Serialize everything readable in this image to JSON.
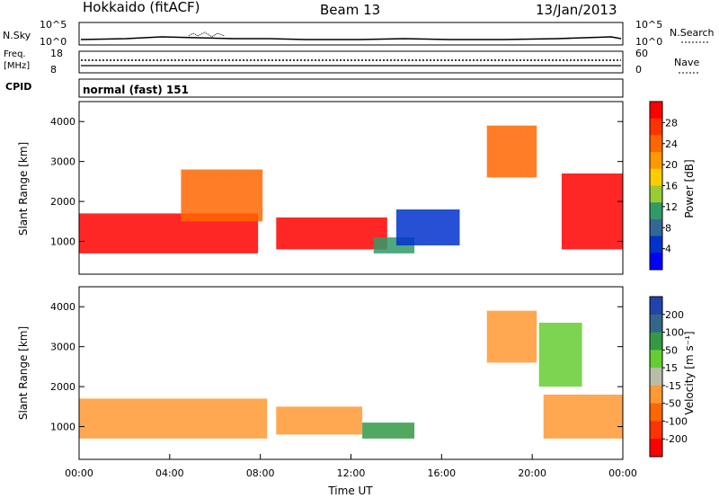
{
  "header": {
    "station": "Hokkaido (fitACF)",
    "beam": "Beam 13",
    "date": "13/Jan/2013"
  },
  "aux": {
    "nsky_label": "N.Sky",
    "nsky_ticks": [
      "10^5",
      "10^0"
    ],
    "nsearch_label": "N.Search",
    "nsearch_ticks": [
      "10^5",
      "10^0"
    ],
    "freq_label": "Freq.",
    "freq_unit": "[MHz]",
    "freq_ticks": [
      "18",
      "8"
    ],
    "nave_label": "Nave",
    "nave_ticks": [
      "60",
      "0"
    ],
    "cpid_label": "CPID",
    "cpid_value": "normal (fast) 151"
  },
  "chart_data": [
    {
      "type": "heatmap",
      "panel": "power",
      "ylabel": "Slant Range [km]",
      "yticks": [
        "4000",
        "3000",
        "2000",
        "1000"
      ],
      "ylim": [
        180,
        4500
      ],
      "xlim_hours": [
        0,
        24
      ],
      "colorbar": {
        "label": "Power [dB]",
        "ticks": [
          "28",
          "24",
          "20",
          "16",
          "12",
          "8",
          "4"
        ],
        "colors": [
          "#ff0000",
          "#ff3300",
          "#ff6600",
          "#ff9900",
          "#ffcc00",
          "#99cc33",
          "#339966",
          "#336699",
          "#0033cc",
          "#0000ff"
        ]
      },
      "echo_regions": [
        {
          "t0": 0.0,
          "t1": 7.9,
          "r0": 700,
          "r1": 1700,
          "value": "28"
        },
        {
          "t0": 4.5,
          "t1": 8.1,
          "r0": 1500,
          "r1": 2800,
          "value": "24"
        },
        {
          "t0": 8.7,
          "t1": 13.6,
          "r0": 800,
          "r1": 1600,
          "value": "28"
        },
        {
          "t0": 13.0,
          "t1": 14.8,
          "r0": 700,
          "r1": 1100,
          "value": "12"
        },
        {
          "t0": 14.0,
          "t1": 16.8,
          "r0": 900,
          "r1": 1800,
          "value": "8"
        },
        {
          "t0": 18.0,
          "t1": 20.2,
          "r0": 2600,
          "r1": 3900,
          "value": "24"
        },
        {
          "t0": 21.3,
          "t1": 24.0,
          "r0": 800,
          "r1": 2700,
          "value": "28"
        }
      ]
    },
    {
      "type": "heatmap",
      "panel": "velocity",
      "ylabel": "Slant Range [km]",
      "yticks": [
        "4000",
        "3000",
        "2000",
        "1000"
      ],
      "ylim": [
        180,
        4500
      ],
      "xlim_hours": [
        0,
        24
      ],
      "xlabel": "Time UT",
      "xticks": [
        "00:00",
        "04:00",
        "08:00",
        "12:00",
        "16:00",
        "20:00",
        "00:00"
      ],
      "colorbar": {
        "label": "Velocity [m s⁻¹]",
        "ticks": [
          "200",
          "100",
          "50",
          "15",
          "-15",
          "-50",
          "-100",
          "-200"
        ],
        "colors": [
          "#2244aa",
          "#336688",
          "#339944",
          "#66cc33",
          "#bbbbaa",
          "#ff9933",
          "#ff6600",
          "#ff3300",
          "#ff0000"
        ]
      },
      "echo_regions": [
        {
          "t0": 0.0,
          "t1": 8.3,
          "r0": 700,
          "r1": 1700,
          "value": "-15"
        },
        {
          "t0": 8.7,
          "t1": 12.5,
          "r0": 800,
          "r1": 1500,
          "value": "-15"
        },
        {
          "t0": 12.5,
          "t1": 14.8,
          "r0": 700,
          "r1": 1100,
          "value": "50"
        },
        {
          "t0": 18.0,
          "t1": 20.2,
          "r0": 2600,
          "r1": 3900,
          "value": "-15"
        },
        {
          "t0": 20.5,
          "t1": 24.0,
          "r0": 700,
          "r1": 1800,
          "value": "-15"
        },
        {
          "t0": 20.3,
          "t1": 22.2,
          "r0": 2000,
          "r1": 3600,
          "value": "15"
        }
      ]
    }
  ]
}
